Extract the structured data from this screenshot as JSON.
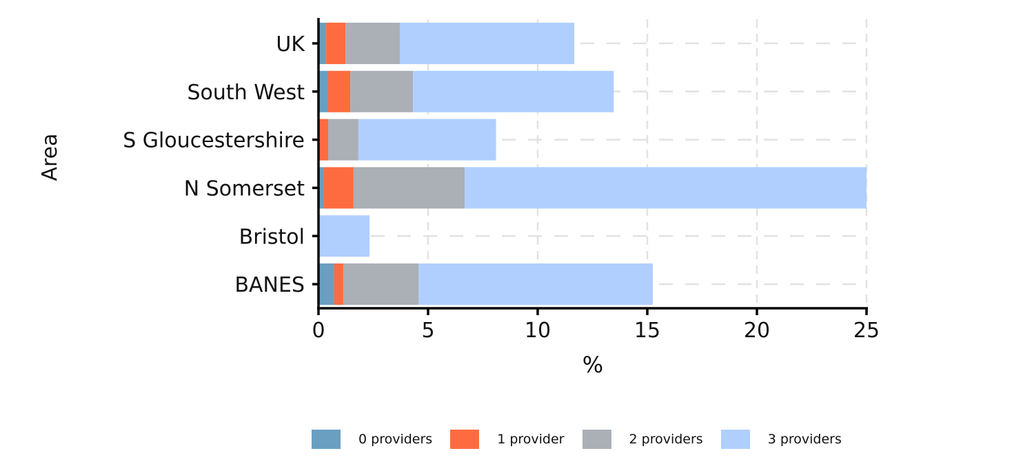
{
  "chart_data": {
    "type": "bar",
    "orientation": "horizontal",
    "stacked": true,
    "title": "",
    "xlabel": "%",
    "ylabel": "Area",
    "xlim": [
      0,
      25
    ],
    "xticks": [
      0,
      5,
      10,
      15,
      20,
      25
    ],
    "grid": true,
    "legend_position": "bottom",
    "categories": [
      "UK",
      "South West",
      "S Gloucestershire",
      "N Somerset",
      "Bristol",
      "BANES"
    ],
    "series": [
      {
        "name": "0 providers",
        "color": "#6a9fc2",
        "values": [
          0.35,
          0.44,
          0.0,
          0.25,
          0.0,
          0.72
        ]
      },
      {
        "name": "1 provider",
        "color": "#ff6b40",
        "values": [
          0.88,
          1.01,
          0.44,
          1.35,
          0.0,
          0.41
        ]
      },
      {
        "name": "2 providers",
        "color": "#aab0b6",
        "values": [
          2.48,
          2.86,
          1.38,
          5.07,
          0.0,
          3.43
        ]
      },
      {
        "name": "3 providers",
        "color": "#b0cfff",
        "values": [
          7.96,
          9.16,
          6.28,
          18.33,
          2.33,
          10.69
        ]
      }
    ]
  }
}
